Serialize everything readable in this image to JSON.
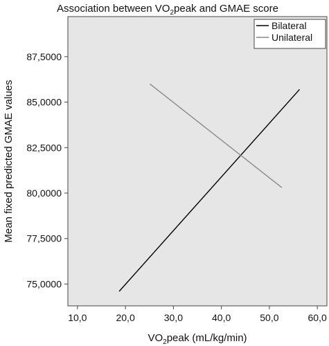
{
  "chart_data": {
    "type": "line",
    "title_parts": [
      "Association between VO",
      "2",
      "peak and GMAE score"
    ],
    "xlabel_parts": [
      "VO",
      "2",
      "peak (mL/kg/min)"
    ],
    "ylabel": "Mean fixed predicted GMAE values",
    "xlim": [
      8.0,
      62.0
    ],
    "ylim": [
      73.8,
      89.7
    ],
    "xticks": [
      10.0,
      20.0,
      30.0,
      40.0,
      50.0,
      60.0
    ],
    "xtick_labels": [
      "10,0",
      "20,0",
      "30,0",
      "40,0",
      "50,0",
      "60,0"
    ],
    "yticks": [
      75.0,
      77.5,
      80.0,
      82.5,
      85.0,
      87.5
    ],
    "ytick_labels": [
      "75,0000",
      "77,5000",
      "80,0000",
      "82,5000",
      "85,0000",
      "87,5000"
    ],
    "grid": false,
    "legend_position": "top-right",
    "series": [
      {
        "name": "Bilateral",
        "color": "#000000",
        "x": [
          18.7,
          56.3
        ],
        "y": [
          74.6,
          85.7
        ]
      },
      {
        "name": "Unilateral",
        "color": "#888888",
        "x": [
          25.1,
          52.6
        ],
        "y": [
          86.0,
          80.3
        ]
      }
    ]
  }
}
